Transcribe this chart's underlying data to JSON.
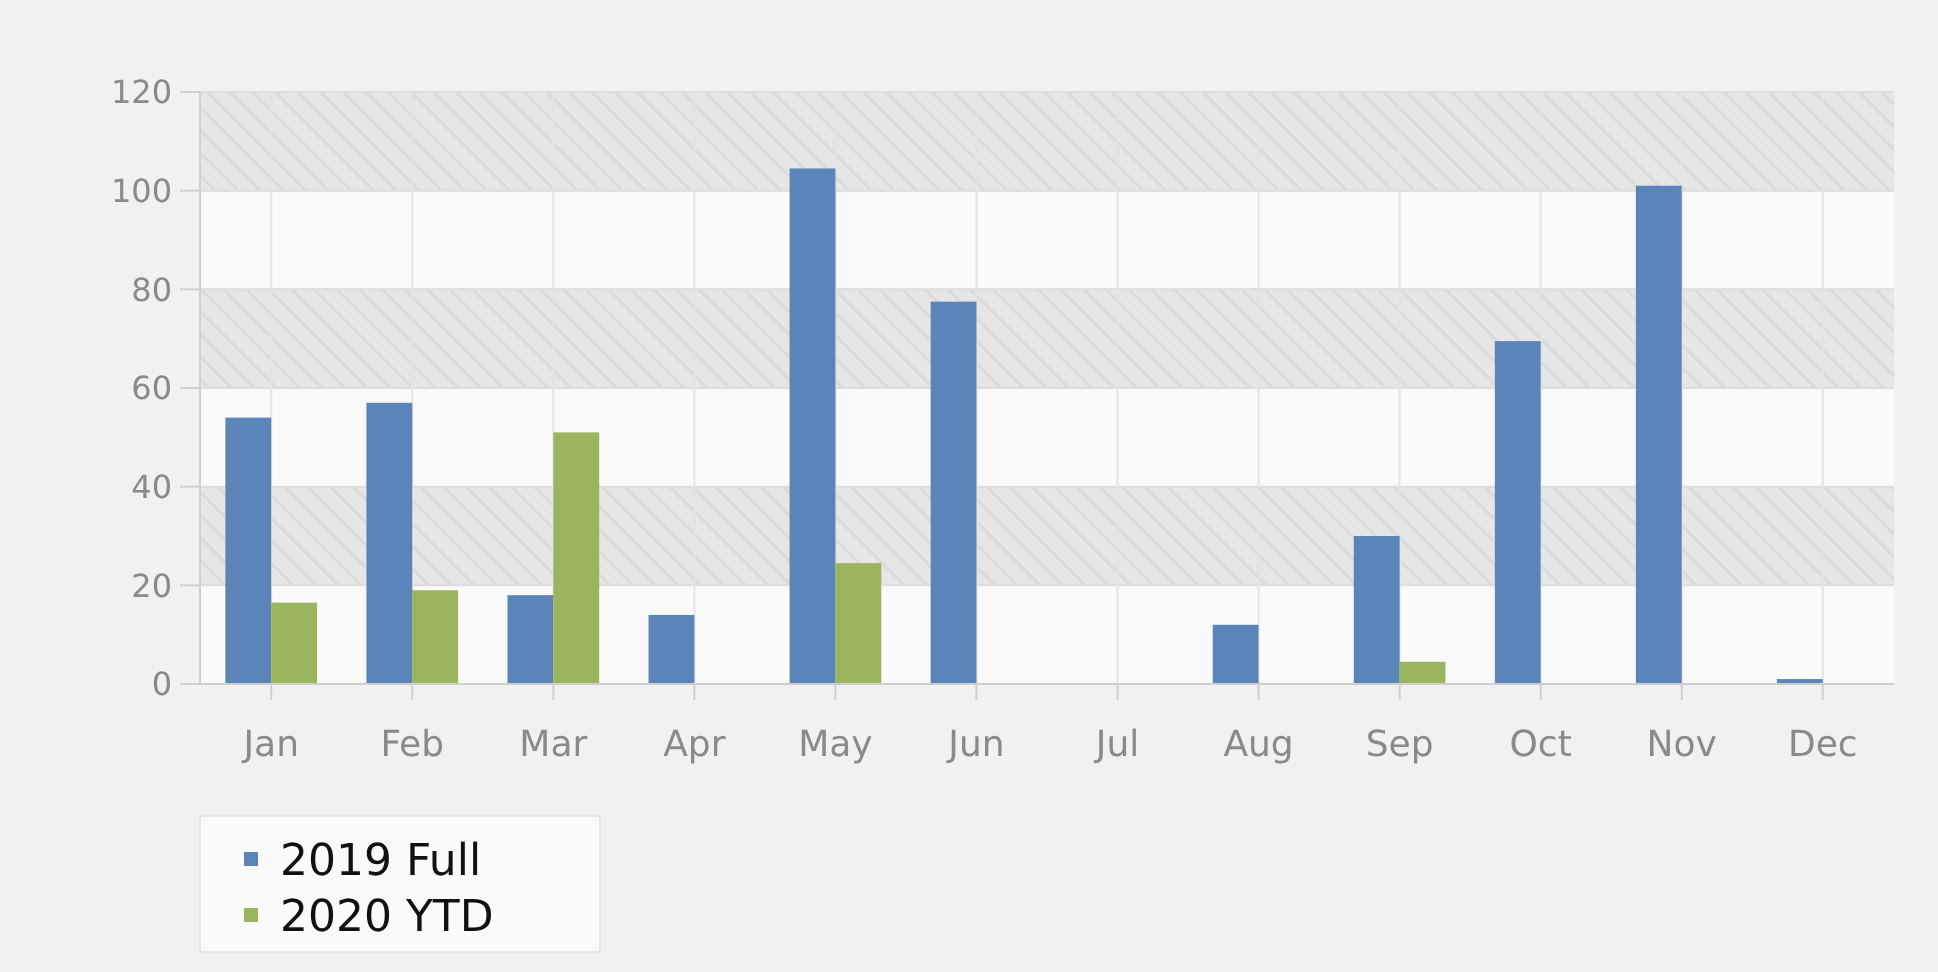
{
  "chart_data": {
    "type": "bar",
    "categories": [
      "Jan",
      "Feb",
      "Mar",
      "Apr",
      "May",
      "Jun",
      "Jul",
      "Aug",
      "Sep",
      "Oct",
      "Nov",
      "Dec"
    ],
    "series": [
      {
        "name": "2019 Full",
        "color": "#5b84b8",
        "values": [
          54,
          57,
          18,
          14,
          104.5,
          77.5,
          0,
          12,
          30,
          69.5,
          101,
          1
        ]
      },
      {
        "name": "2020 YTD",
        "color": "#9bb45e",
        "values": [
          16.5,
          19,
          51,
          0,
          24.5,
          0,
          0,
          0,
          4.5,
          0,
          0,
          0
        ]
      }
    ],
    "ylim": [
      0,
      120
    ],
    "yticks": [
      0,
      20,
      40,
      60,
      80,
      100,
      120
    ],
    "grid": true,
    "bands": [
      {
        "axis": "y",
        "from": 20,
        "to": 40,
        "color": "#e6e6e6"
      },
      {
        "axis": "y",
        "from": 60,
        "to": 80,
        "color": "#e6e6e6"
      },
      {
        "axis": "y",
        "from": 100,
        "to": 120,
        "color": "#e6e6e6"
      }
    ],
    "legend": "bottom left"
  }
}
